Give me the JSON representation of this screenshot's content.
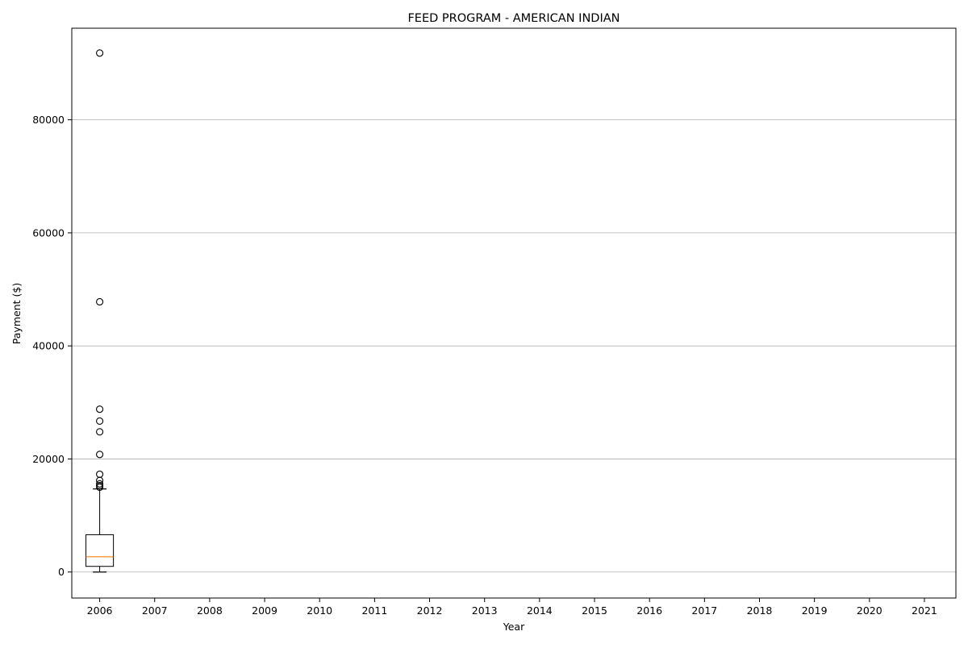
{
  "chart_data": {
    "type": "boxplot",
    "title": "FEED PROGRAM - AMERICAN INDIAN",
    "xlabel": "Year",
    "ylabel": "Payment ($)",
    "categories": [
      "2006",
      "2007",
      "2008",
      "2009",
      "2010",
      "2011",
      "2012",
      "2013",
      "2014",
      "2015",
      "2016",
      "2017",
      "2018",
      "2019",
      "2020",
      "2021"
    ],
    "ylim": [
      -4600,
      96200
    ],
    "yticks": [
      0,
      20000,
      40000,
      60000,
      80000
    ],
    "grid": "y",
    "box_color": "#000000",
    "median_color": "#ff7f0e",
    "grid_color": "#b0b0b0",
    "boxes": [
      {
        "category": "2006",
        "whisker_low": 0,
        "q1": 1000,
        "median": 2700,
        "q3": 6600,
        "whisker_high": 14700,
        "outliers": [
          91800,
          47800,
          28800,
          26700,
          24800,
          20800,
          17300,
          16200,
          15600,
          15300,
          15000
        ]
      }
    ]
  }
}
